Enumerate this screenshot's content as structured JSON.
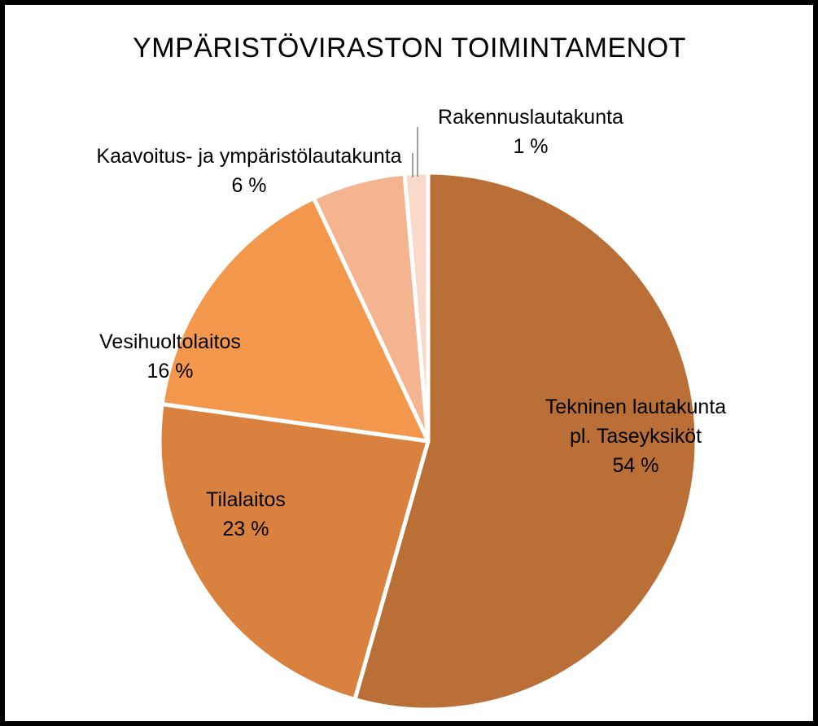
{
  "chart_data": {
    "type": "pie",
    "title": "YMPÄRISTÖVIRASTON TOIMINTAMENOT",
    "slices": [
      {
        "label_lines": [
          "Tekninen lautakunta",
          "pl. Taseyksiköt"
        ],
        "value_label": "54 %",
        "value": 54.4,
        "color": "#B96F35"
      },
      {
        "label_lines": [
          "Tilalaitos"
        ],
        "value_label": "23 %",
        "value": 22.8,
        "color": "#D9813E"
      },
      {
        "label_lines": [
          "Vesihuoltolaitos"
        ],
        "value_label": "16 %",
        "value": 15.8,
        "color": "#F2974C"
      },
      {
        "label_lines": [
          "Kaavoitus- ja ympäristölautakunta"
        ],
        "value_label": "6 %",
        "value": 5.6,
        "color": "#F5B490"
      },
      {
        "label_lines": [
          "Rakennuslautakunta"
        ],
        "value_label": "1 %",
        "value": 1.4,
        "color": "#F9D9C9"
      }
    ]
  }
}
